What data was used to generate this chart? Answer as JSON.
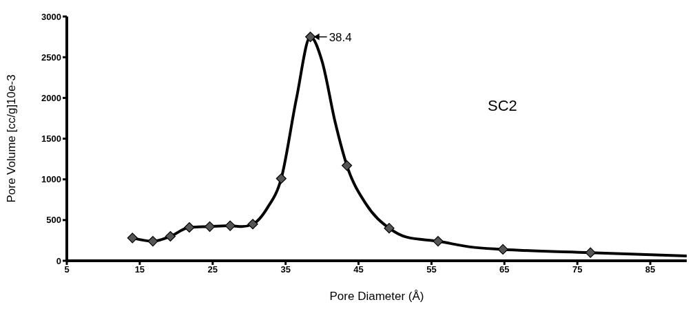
{
  "chart_data": {
    "type": "line",
    "xlabel": "Pore Diameter (Å)",
    "ylabel": "Pore Volume [cc/g]10e-3",
    "xlim": [
      5,
      90
    ],
    "xticks": [
      5,
      15,
      25,
      35,
      45,
      55,
      65,
      75,
      85
    ],
    "ylim": [
      0,
      3000
    ],
    "yticks": [
      0,
      500,
      1000,
      1500,
      2000,
      2500,
      3000
    ],
    "grid": false,
    "marker": "diamond",
    "line_style": "solid",
    "annotations": [
      {
        "text": "38.4",
        "x": 38.4,
        "y": 2750
      },
      "SC2"
    ],
    "series": [
      {
        "type": "line",
        "marker": "none",
        "color": "#000000",
        "x": [
          14.0,
          16.8,
          19.2,
          21.8,
          24.6,
          27.4,
          29.0,
          30.5,
          32.5,
          34.4,
          36.5,
          38.4,
          40.0,
          41.8,
          43.4,
          46.0,
          49.2,
          51.6,
          55.9,
          60.3,
          64.8,
          76.8,
          90.0
        ],
        "values": [
          280,
          240,
          300,
          410,
          420,
          430,
          420,
          450,
          650,
          1010,
          2000,
          2750,
          2450,
          1700,
          1170,
          700,
          400,
          290,
          240,
          170,
          140,
          100,
          60
        ]
      },
      {
        "type": "scatter",
        "color": "#555555",
        "x": [
          14.0,
          16.8,
          19.2,
          21.8,
          24.6,
          27.4,
          30.5,
          34.4,
          38.4,
          43.4,
          49.2,
          55.9,
          64.8,
          76.8
        ],
        "values": [
          280,
          240,
          300,
          410,
          420,
          430,
          450,
          1010,
          2750,
          1170,
          400,
          240,
          140,
          100
        ]
      }
    ]
  }
}
